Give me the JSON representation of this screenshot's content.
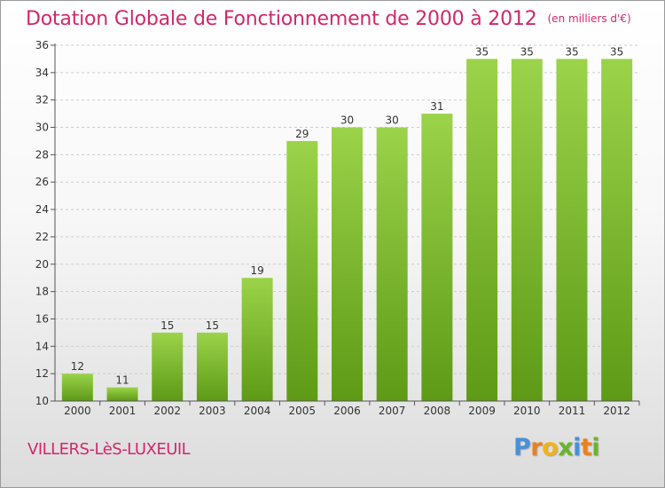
{
  "header": {
    "title": "Dotation Globale de Fonctionnement de 2000 à 2012",
    "unit_note": "(en milliers d'€)"
  },
  "footer": {
    "place": "VILLERS-LèS-LUXEUIL",
    "logo": {
      "text": "Proxiti",
      "letter_colors": [
        "#4a90d9",
        "#e8821e",
        "#f2b21c",
        "#6ab42d",
        "#4a90d9",
        "#e8821e",
        "#6ab42d"
      ]
    }
  },
  "colors": {
    "title": "#d0286c",
    "bar_top": "#9bd34a",
    "bar_bottom": "#5e9a16",
    "axis": "#555555",
    "grid": "#cccccc"
  },
  "chart_data": {
    "type": "bar",
    "title": "Dotation Globale de Fonctionnement de 2000 à 2012",
    "subtitle": "(en milliers d'€)",
    "xlabel": "",
    "ylabel": "",
    "categories": [
      "2000",
      "2001",
      "2002",
      "2003",
      "2004",
      "2005",
      "2006",
      "2007",
      "2008",
      "2009",
      "2010",
      "2011",
      "2012"
    ],
    "values": [
      12,
      11,
      15,
      15,
      19,
      29,
      30,
      30,
      31,
      35,
      35,
      35,
      35
    ],
    "ylim": [
      10,
      36
    ],
    "yticks": [
      10,
      12,
      14,
      16,
      18,
      20,
      22,
      24,
      26,
      28,
      30,
      32,
      34,
      36
    ],
    "grid": "horizontal dashed",
    "data_labels": true,
    "legend": "none"
  }
}
